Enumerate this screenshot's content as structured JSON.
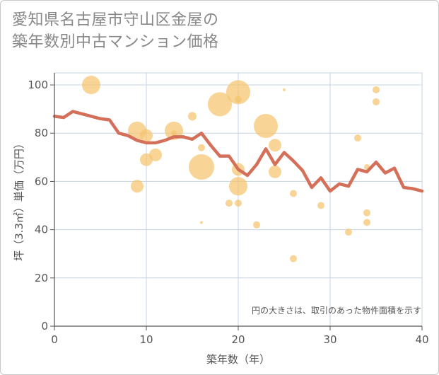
{
  "title": {
    "line1": "愛知県名古屋市守山区金屋の",
    "line2": "築年数別中古マンション価格"
  },
  "chart_data": {
    "type": "scatter",
    "xlabel": "築年数（年）",
    "ylabel": "坪（3.3㎡）単価（万円）",
    "note": "円の大きさは、取引のあった物件面積を示す",
    "xlim": [
      0,
      40
    ],
    "ylim": [
      0,
      105
    ],
    "xticks": [
      "0",
      "10",
      "20",
      "30",
      "40"
    ],
    "yticks": [
      "0",
      "20",
      "40",
      "60",
      "80",
      "100"
    ],
    "grid": true,
    "colors": {
      "bubble": "#f5c46e",
      "line": "#d46f5a",
      "grid": "#c5d3e0",
      "axis": "#555555"
    },
    "scatter": [
      {
        "x": 4,
        "y": 100,
        "size": 13
      },
      {
        "x": 9,
        "y": 81,
        "size": 13
      },
      {
        "x": 9,
        "y": 58,
        "size": 9
      },
      {
        "x": 10,
        "y": 79,
        "size": 9
      },
      {
        "x": 10,
        "y": 69,
        "size": 9
      },
      {
        "x": 11,
        "y": 71,
        "size": 9
      },
      {
        "x": 13,
        "y": 81,
        "size": 13
      },
      {
        "x": 13,
        "y": 80,
        "size": 4
      },
      {
        "x": 15,
        "y": 87,
        "size": 6
      },
      {
        "x": 16,
        "y": 74,
        "size": 5
      },
      {
        "x": 16,
        "y": 66,
        "size": 18
      },
      {
        "x": 16,
        "y": 43,
        "size": 2
      },
      {
        "x": 18,
        "y": 92,
        "size": 17
      },
      {
        "x": 19,
        "y": 51,
        "size": 5
      },
      {
        "x": 20,
        "y": 97,
        "size": 17
      },
      {
        "x": 20,
        "y": 94,
        "size": 5
      },
      {
        "x": 20,
        "y": 65,
        "size": 9
      },
      {
        "x": 20,
        "y": 58,
        "size": 13
      },
      {
        "x": 20,
        "y": 51,
        "size": 5
      },
      {
        "x": 22,
        "y": 42,
        "size": 5
      },
      {
        "x": 23,
        "y": 83,
        "size": 17
      },
      {
        "x": 24,
        "y": 75,
        "size": 9
      },
      {
        "x": 24,
        "y": 64,
        "size": 9
      },
      {
        "x": 25,
        "y": 98,
        "size": 2
      },
      {
        "x": 26,
        "y": 55,
        "size": 5
      },
      {
        "x": 26,
        "y": 28,
        "size": 5
      },
      {
        "x": 29,
        "y": 50,
        "size": 5
      },
      {
        "x": 32,
        "y": 39,
        "size": 5
      },
      {
        "x": 33,
        "y": 78,
        "size": 5
      },
      {
        "x": 34,
        "y": 66,
        "size": 4
      },
      {
        "x": 34,
        "y": 47,
        "size": 5
      },
      {
        "x": 34,
        "y": 43,
        "size": 5
      },
      {
        "x": 35,
        "y": 98,
        "size": 5
      },
      {
        "x": 35,
        "y": 93,
        "size": 5
      }
    ],
    "line": {
      "x": [
        0,
        1,
        2,
        3,
        4,
        5,
        6,
        7,
        8,
        9,
        10,
        11,
        12,
        13,
        14,
        15,
        16,
        17,
        18,
        19,
        20,
        21,
        22,
        23,
        24,
        25,
        26,
        27,
        28,
        29,
        30,
        31,
        32,
        33,
        34,
        35,
        36,
        37,
        38,
        39,
        40
      ],
      "y": [
        87,
        86.5,
        89,
        88,
        87,
        86,
        85.5,
        80,
        79,
        77,
        76,
        76,
        77,
        78.5,
        78.5,
        77.5,
        80,
        75,
        70.5,
        70.5,
        65,
        62.5,
        67,
        73.5,
        67,
        72,
        68.5,
        64.5,
        57.5,
        61.5,
        56,
        59,
        58,
        65,
        64,
        68,
        63.5,
        65.5,
        57.5,
        57,
        56
      ]
    }
  }
}
